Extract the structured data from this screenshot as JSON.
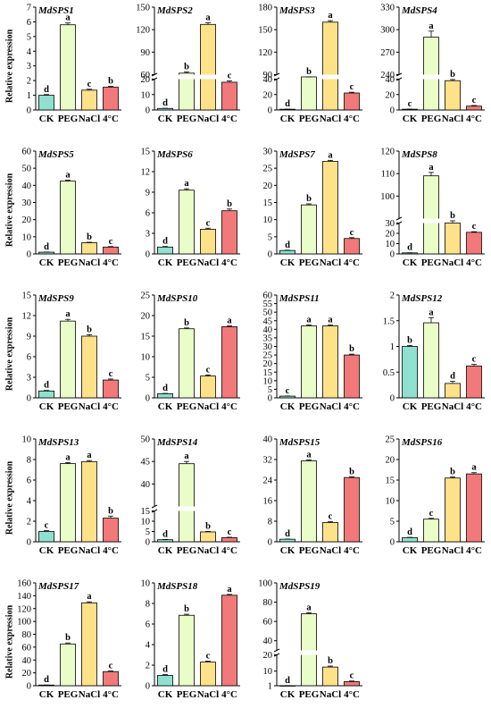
{
  "y_axis_label": "Relative expression",
  "colors": {
    "CK": "#8fe0cf",
    "PEG": "#eafdc9",
    "NaCl": "#fde28a",
    "4°C": "#f27979",
    "outline": "#000000"
  },
  "chart_data": [
    {
      "type": "bar",
      "title": "MdSPS1",
      "categories": [
        "CK",
        "PEG",
        "NaCl",
        "4°C"
      ],
      "values": [
        1.0,
        5.8,
        1.35,
        1.55
      ],
      "errors": [
        0.05,
        0.12,
        0.06,
        0.06
      ],
      "letters": [
        "d",
        "a",
        "c",
        "b"
      ],
      "ylim": [
        0,
        7
      ],
      "yticks": [
        0,
        1,
        2,
        3,
        4,
        5,
        6,
        7
      ],
      "ytick_labels": [
        "0",
        "1",
        "2",
        "3",
        "4",
        "5",
        "6",
        "7"
      ],
      "axis_break": null
    },
    {
      "type": "bar",
      "title": "MdSPS2",
      "categories": [
        "CK",
        "PEG",
        "NaCl",
        "4°C"
      ],
      "values": [
        1.0,
        62,
        127,
        18
      ],
      "errors": [
        0.1,
        1.5,
        2,
        0.8
      ],
      "letters": [
        "d",
        "b",
        "a",
        "c"
      ],
      "ylim": [
        0,
        150
      ],
      "yticks": [
        0,
        10,
        20,
        60,
        90,
        120,
        150
      ],
      "ytick_labels": [
        "0",
        "10",
        "20",
        "60",
        "90",
        "120",
        "150"
      ],
      "axis_break": [
        20,
        60
      ]
    },
    {
      "type": "bar",
      "title": "MdSPS3",
      "categories": [
        "CK",
        "PEG",
        "NaCl",
        "4°C"
      ],
      "values": [
        1.0,
        85,
        160,
        22
      ],
      "errors": [
        0.1,
        1.5,
        2,
        1
      ],
      "letters": [
        "d",
        "b",
        "a",
        "c"
      ],
      "ylim": [
        0,
        180
      ],
      "yticks": [
        0,
        20,
        40,
        90,
        120,
        150,
        180
      ],
      "ytick_labels": [
        "0",
        "20",
        "40",
        "90",
        "120",
        "150",
        "180"
      ],
      "axis_break": [
        40,
        90
      ]
    },
    {
      "type": "bar",
      "title": "MdSPS4",
      "categories": [
        "CK",
        "PEG",
        "NaCl",
        "4°C"
      ],
      "values": [
        1.0,
        290,
        38,
        5
      ],
      "errors": [
        0.1,
        8,
        1.5,
        0.8
      ],
      "letters": [
        "c",
        "a",
        "b",
        "c"
      ],
      "ylim": [
        0,
        330
      ],
      "yticks": [
        0,
        20,
        40,
        240,
        270,
        300,
        330
      ],
      "ytick_labels": [
        "0",
        "20",
        "40",
        "240",
        "270",
        "300",
        "330"
      ],
      "axis_break": [
        40,
        240
      ]
    },
    {
      "type": "bar",
      "title": "MdSPS5",
      "categories": [
        "CK",
        "PEG",
        "NaCl",
        "4°C"
      ],
      "values": [
        1.0,
        42.5,
        6.5,
        4.0
      ],
      "errors": [
        0.1,
        0.5,
        0.3,
        0.3
      ],
      "letters": [
        "d",
        "a",
        "b",
        "c"
      ],
      "ylim": [
        0,
        60
      ],
      "yticks": [
        0,
        10,
        20,
        30,
        40,
        50,
        60
      ],
      "ytick_labels": [
        "0",
        "10",
        "20",
        "30",
        "40",
        "50",
        "60"
      ],
      "axis_break": null
    },
    {
      "type": "bar",
      "title": "MdSPS6",
      "categories": [
        "CK",
        "PEG",
        "NaCl",
        "4°C"
      ],
      "values": [
        1.0,
        9.3,
        3.6,
        6.3
      ],
      "errors": [
        0.08,
        0.2,
        0.15,
        0.25
      ],
      "letters": [
        "d",
        "a",
        "c",
        "b"
      ],
      "ylim": [
        0,
        15
      ],
      "yticks": [
        0,
        3,
        6,
        9,
        12,
        15
      ],
      "ytick_labels": [
        "0",
        "3",
        "6",
        "9",
        "12",
        "15"
      ],
      "axis_break": null
    },
    {
      "type": "bar",
      "title": "MdSPS7",
      "categories": [
        "CK",
        "PEG",
        "NaCl",
        "4°C"
      ],
      "values": [
        1.0,
        14.3,
        27.0,
        4.5
      ],
      "errors": [
        0.08,
        0.3,
        0.3,
        0.25
      ],
      "letters": [
        "d",
        "b",
        "a",
        "c"
      ],
      "ylim": [
        0,
        30
      ],
      "yticks": [
        0,
        5,
        10,
        15,
        20,
        25,
        30
      ],
      "ytick_labels": [
        "0",
        "5",
        "10",
        "15",
        "20",
        "25",
        "30"
      ],
      "axis_break": null
    },
    {
      "type": "bar",
      "title": "MdSPS8",
      "categories": [
        "CK",
        "PEG",
        "NaCl",
        "4°C"
      ],
      "values": [
        1.0,
        109,
        30,
        21
      ],
      "errors": [
        0.1,
        1.5,
        0.8,
        0.6
      ],
      "letters": [
        "d",
        "a",
        "b",
        "c"
      ],
      "ylim": [
        0,
        120
      ],
      "yticks": [
        0,
        10,
        20,
        30,
        100,
        110,
        120
      ],
      "ytick_labels": [
        "0",
        "10",
        "20",
        "30",
        "100",
        "110",
        "120"
      ],
      "axis_break": [
        30,
        90
      ]
    },
    {
      "type": "bar",
      "title": "MdSPS9",
      "categories": [
        "CK",
        "PEG",
        "NaCl",
        "4°C"
      ],
      "values": [
        1.0,
        11.2,
        9.0,
        2.6
      ],
      "errors": [
        0.08,
        0.25,
        0.2,
        0.15
      ],
      "letters": [
        "d",
        "a",
        "b",
        "c"
      ],
      "ylim": [
        0,
        15
      ],
      "yticks": [
        0,
        3,
        6,
        9,
        12,
        15
      ],
      "ytick_labels": [
        "0",
        "3",
        "6",
        "9",
        "12",
        "15"
      ],
      "axis_break": null
    },
    {
      "type": "bar",
      "title": "MdSPS10",
      "categories": [
        "CK",
        "PEG",
        "NaCl",
        "4°C"
      ],
      "values": [
        1.0,
        16.8,
        5.3,
        17.3
      ],
      "errors": [
        0.08,
        0.2,
        0.25,
        0.2
      ],
      "letters": [
        "d",
        "b",
        "c",
        "a"
      ],
      "ylim": [
        0,
        25
      ],
      "yticks": [
        0,
        5,
        10,
        15,
        20,
        25
      ],
      "ytick_labels": [
        "0",
        "5",
        "10",
        "15",
        "20",
        "25"
      ],
      "axis_break": null
    },
    {
      "type": "bar",
      "title": "MdSPS11",
      "categories": [
        "CK",
        "PEG",
        "NaCl",
        "4°C"
      ],
      "values": [
        1.0,
        42,
        42,
        25
      ],
      "errors": [
        0.1,
        0.6,
        0.6,
        0.5
      ],
      "letters": [
        "c",
        "a",
        "a",
        "b"
      ],
      "ylim": [
        0,
        60
      ],
      "yticks": [
        0,
        5,
        10,
        15,
        20,
        25,
        30,
        35,
        40,
        45,
        50,
        55,
        60
      ],
      "ytick_labels": [
        "0",
        "5",
        "10",
        "15",
        "20",
        "25",
        "30",
        "35",
        "40",
        "45",
        "50",
        "55",
        "60"
      ],
      "axis_break": null
    },
    {
      "type": "bar",
      "title": "MdSPS12",
      "categories": [
        "CK",
        "PEG",
        "NaCl",
        "4°C"
      ],
      "values": [
        1.0,
        1.46,
        0.28,
        0.62
      ],
      "errors": [
        0.02,
        0.1,
        0.04,
        0.03
      ],
      "letters": [
        "b",
        "a",
        "d",
        "c"
      ],
      "ylim": [
        0,
        2
      ],
      "yticks": [
        0,
        0.5,
        1,
        1.5,
        2
      ],
      "ytick_labels": [
        "0",
        "0.5",
        "1",
        "1.5",
        "2"
      ],
      "axis_break": null
    },
    {
      "type": "bar",
      "title": "MdSPS13",
      "categories": [
        "CK",
        "PEG",
        "NaCl",
        "4°C"
      ],
      "values": [
        1.0,
        7.6,
        7.8,
        2.3
      ],
      "errors": [
        0.08,
        0.1,
        0.1,
        0.2
      ],
      "letters": [
        "c",
        "a",
        "a",
        "b"
      ],
      "ylim": [
        0,
        10
      ],
      "yticks": [
        0,
        2,
        4,
        6,
        8,
        10
      ],
      "ytick_labels": [
        "0",
        "2",
        "4",
        "6",
        "8",
        "10"
      ],
      "axis_break": null
    },
    {
      "type": "bar",
      "title": "MdSPS14",
      "categories": [
        "CK",
        "PEG",
        "NaCl",
        "4°C"
      ],
      "values": [
        1.0,
        44.5,
        4.8,
        2.0
      ],
      "errors": [
        0.1,
        0.5,
        0.2,
        0.2
      ],
      "letters": [
        "d",
        "a",
        "b",
        "c"
      ],
      "ylim": [
        0,
        50
      ],
      "yticks": [
        0,
        5,
        10,
        15,
        40,
        45,
        50
      ],
      "ytick_labels": [
        "0",
        "5",
        "10",
        "15",
        "40",
        "45",
        "50"
      ],
      "axis_break": [
        15,
        35
      ]
    },
    {
      "type": "bar",
      "title": "MdSPS15",
      "categories": [
        "CK",
        "PEG",
        "NaCl",
        "4°C"
      ],
      "values": [
        1.0,
        31.5,
        7.5,
        25.0
      ],
      "errors": [
        0.08,
        0.4,
        0.3,
        0.3
      ],
      "letters": [
        "d",
        "a",
        "c",
        "b"
      ],
      "ylim": [
        0,
        40
      ],
      "yticks": [
        0,
        8,
        16,
        24,
        32,
        40
      ],
      "ytick_labels": [
        "0",
        "8",
        "16",
        "24",
        "32",
        "40"
      ],
      "axis_break": null
    },
    {
      "type": "bar",
      "title": "MdSPS16",
      "categories": [
        "CK",
        "PEG",
        "NaCl",
        "4°C"
      ],
      "values": [
        1.0,
        5.5,
        15.5,
        16.5
      ],
      "errors": [
        0.08,
        0.2,
        0.3,
        0.3
      ],
      "letters": [
        "d",
        "c",
        "b",
        "a"
      ],
      "ylim": [
        0,
        25
      ],
      "yticks": [
        0,
        5,
        10,
        15,
        20,
        25
      ],
      "ytick_labels": [
        "0",
        "5",
        "10",
        "15",
        "20",
        "25"
      ],
      "axis_break": null
    },
    {
      "type": "bar",
      "title": "MdSPS17",
      "categories": [
        "CK",
        "PEG",
        "NaCl",
        "4°C"
      ],
      "values": [
        1.0,
        65,
        129,
        22
      ],
      "errors": [
        0.1,
        1.5,
        1.5,
        1.0
      ],
      "letters": [
        "d",
        "b",
        "a",
        "c"
      ],
      "ylim": [
        0,
        160
      ],
      "yticks": [
        0,
        20,
        40,
        60,
        80,
        100,
        120,
        140,
        160
      ],
      "ytick_labels": [
        "0",
        "20",
        "40",
        "60",
        "80",
        "100",
        "120",
        "140",
        "160"
      ],
      "axis_break": null
    },
    {
      "type": "bar",
      "title": "MdSPS18",
      "categories": [
        "CK",
        "PEG",
        "NaCl",
        "4°C"
      ],
      "values": [
        1.0,
        6.85,
        2.3,
        8.8
      ],
      "errors": [
        0.08,
        0.1,
        0.1,
        0.08
      ],
      "letters": [
        "d",
        "b",
        "c",
        "a"
      ],
      "ylim": [
        0,
        10
      ],
      "yticks": [
        0,
        2,
        4,
        6,
        8,
        10
      ],
      "ytick_labels": [
        "0",
        "2",
        "4",
        "6",
        "8",
        "10"
      ],
      "axis_break": null
    },
    {
      "type": "bar",
      "title": "MdSPS19",
      "categories": [
        "CK",
        "PEG",
        "NaCl",
        "4°C"
      ],
      "values": [
        1.0,
        68,
        12.5,
        3.5
      ],
      "errors": [
        0.1,
        1.0,
        0.6,
        0.4
      ],
      "letters": [
        "d",
        "a",
        "b",
        "c"
      ],
      "ylim": [
        1,
        100
      ],
      "yticks": [
        1,
        10,
        20,
        40,
        60,
        80,
        100
      ],
      "ytick_labels": [
        "1",
        "10",
        "20",
        "40",
        "60",
        "80",
        "100"
      ],
      "axis_break": [
        20,
        30
      ]
    }
  ]
}
